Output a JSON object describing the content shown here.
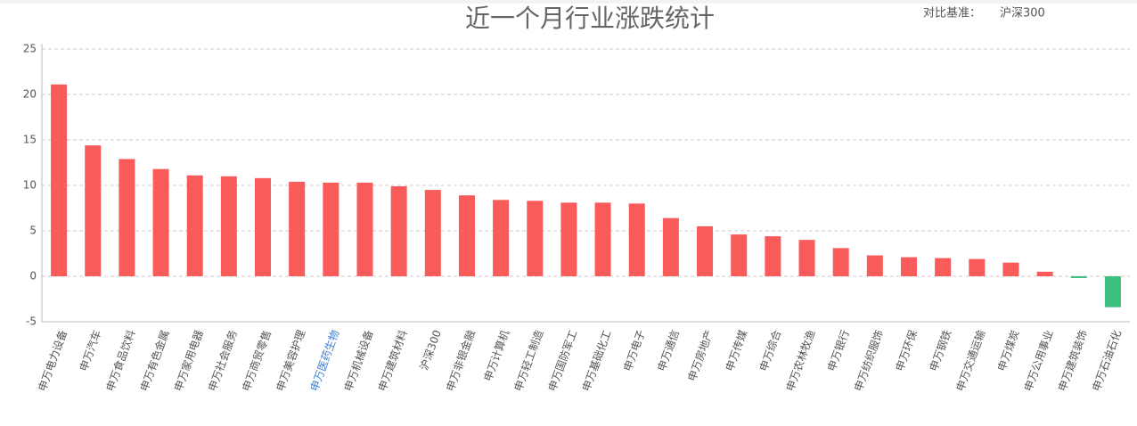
{
  "chart_data": {
    "type": "bar",
    "title": "近一个月行业涨跌统计",
    "benchmark_label": "对比基准：",
    "benchmark": "沪深300",
    "categories": [
      "申万电力设备",
      "申万汽车",
      "申万食品饮料",
      "申万有色金属",
      "申万家用电器",
      "申万社会服务",
      "申万商贸零售",
      "申万美容护理",
      "申万医药生物",
      "申万机械设备",
      "申万建筑材料",
      "沪深300",
      "申万非银金融",
      "申万计算机",
      "申万轻工制造",
      "申万国防军工",
      "申万基础化工",
      "申万电子",
      "申万通信",
      "申万房地产",
      "申万传媒",
      "申万综合",
      "申万农林牧渔",
      "申万银行",
      "申万纺织服饰",
      "申万环保",
      "申万钢铁",
      "申万交通运输",
      "申万煤炭",
      "申万公用事业",
      "申万建筑装饰",
      "申万石油石化"
    ],
    "values": [
      21.1,
      14.4,
      12.9,
      11.8,
      11.1,
      11.0,
      10.8,
      10.4,
      10.3,
      10.3,
      9.9,
      9.5,
      8.9,
      8.4,
      8.3,
      8.1,
      8.1,
      8.0,
      6.4,
      5.5,
      4.6,
      4.4,
      4.0,
      3.1,
      2.3,
      2.1,
      2.0,
      1.9,
      1.5,
      0.5,
      -0.2,
      -3.4
    ],
    "color": "#f95a5a",
    "negative_color": "#3dbf7f",
    "highlight": {
      "index": 8,
      "color": "#3a7fd5"
    },
    "ylim": [
      -5,
      25
    ],
    "yticks": [
      -5,
      0,
      5,
      10,
      15,
      20,
      25
    ],
    "grid": true
  }
}
